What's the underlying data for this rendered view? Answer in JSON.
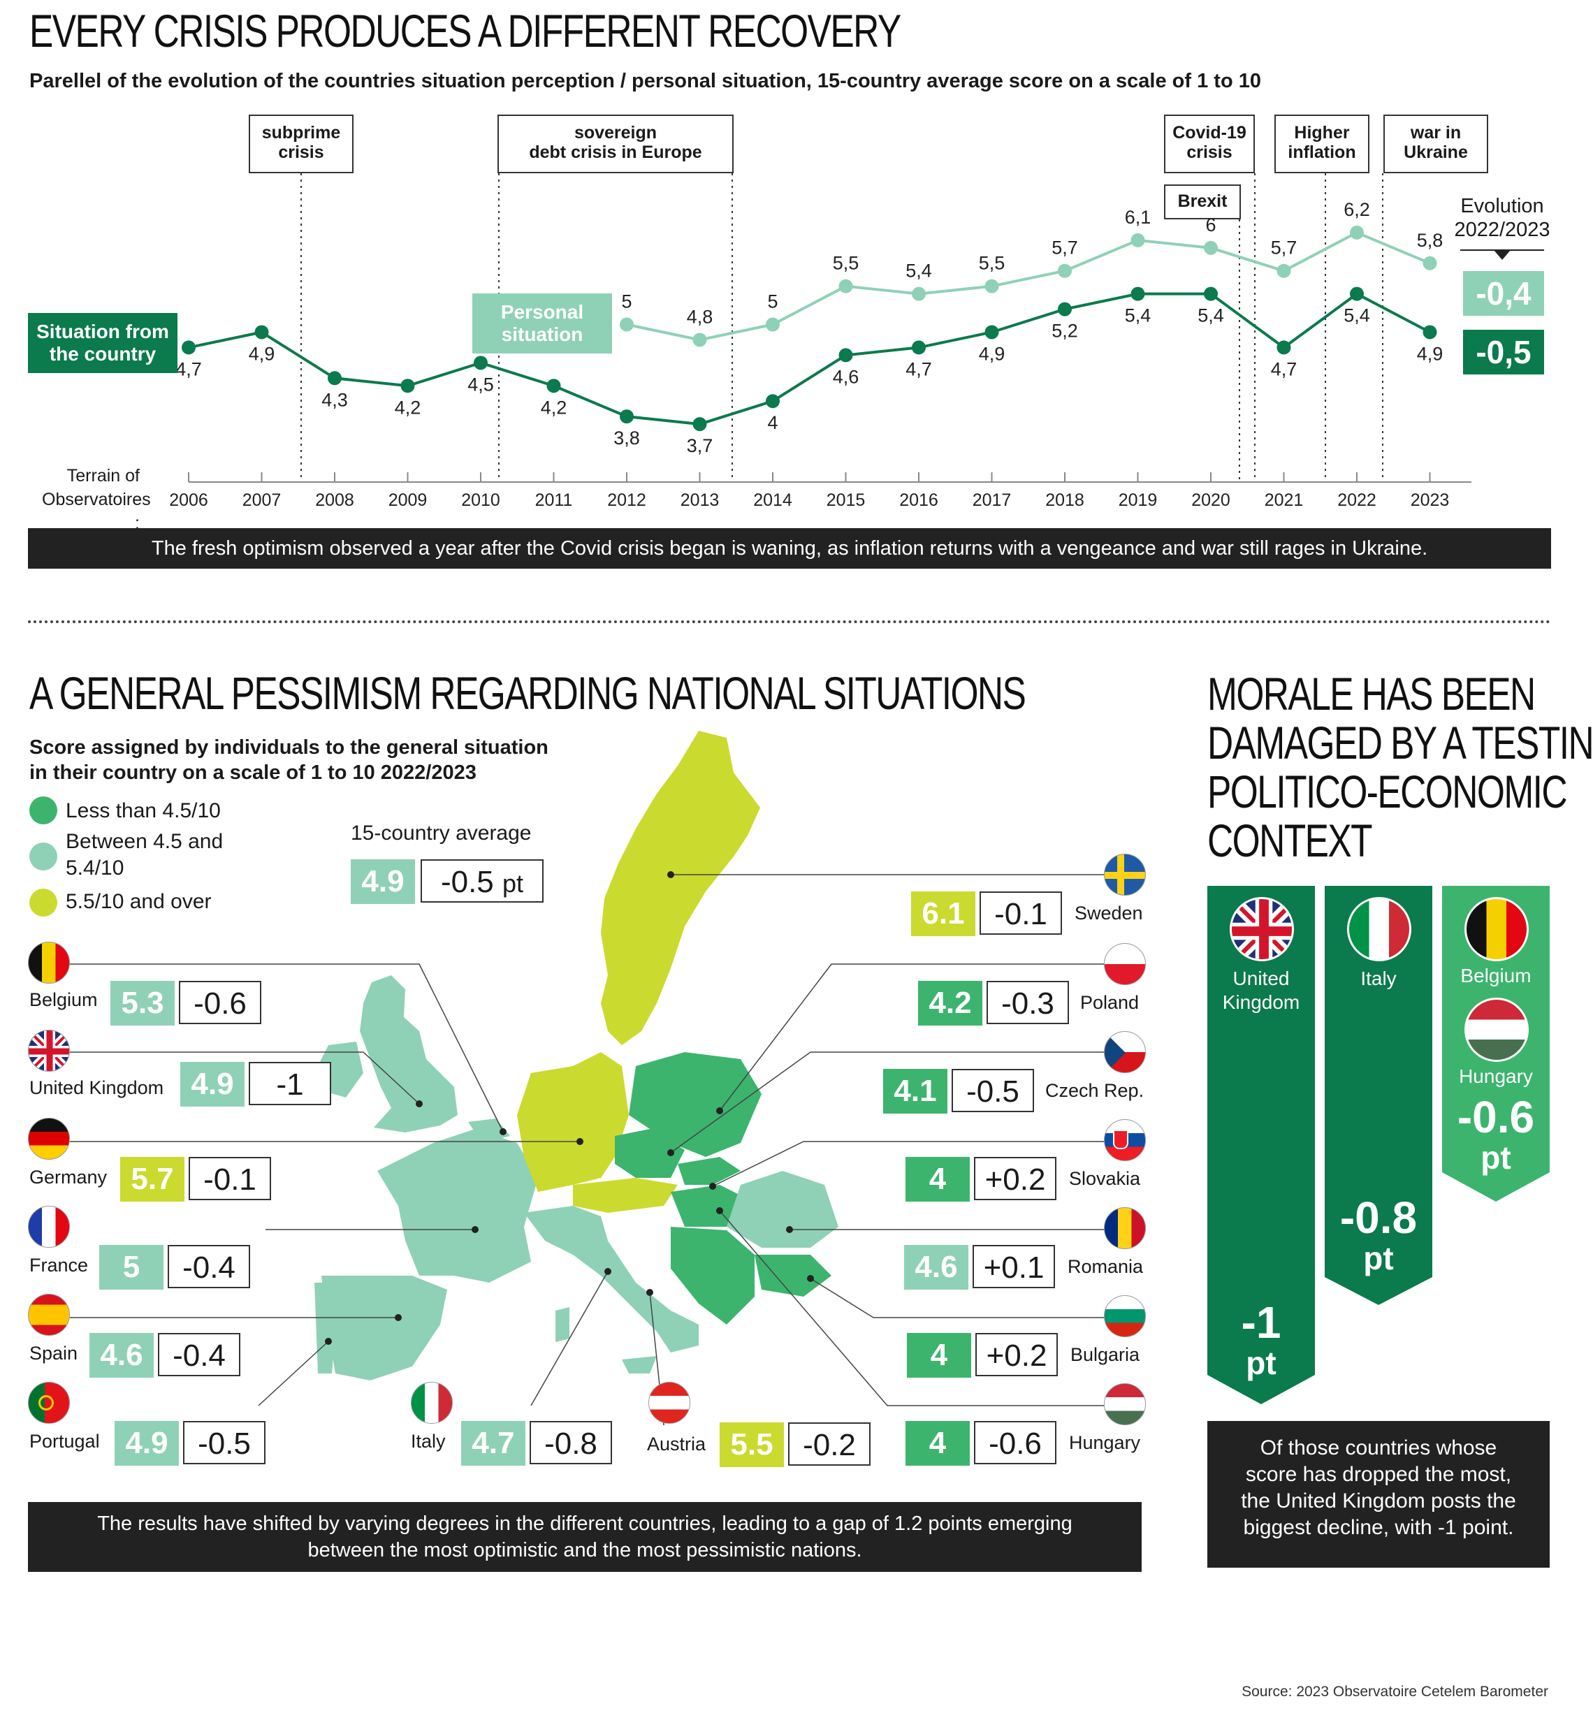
{
  "colors": {
    "dark_green": "#0b7a4c",
    "mid_green": "#3cb46e",
    "light_green": "#8fd1b6",
    "lime": "#cbda2e",
    "dark": "#222222"
  },
  "top": {
    "title": "EVERY CRISIS PRODUCES A DIFFERENT RECOVERY",
    "subtitle": "Parellel of the evolution of the countries situation perception / personal situation, 15-country average score on a scale of 1 to 10",
    "events": [
      {
        "label1": "subprime",
        "label2": "crisis"
      },
      {
        "label1": "sovereign",
        "label2": "debt crisis in Europe"
      },
      {
        "label1": "Covid-19",
        "label2": "crisis"
      },
      {
        "label1": "Brexit",
        "label2": ""
      },
      {
        "label1": "Higher",
        "label2": "inflation"
      },
      {
        "label1": "war in",
        "label2": "Ukraine"
      }
    ],
    "evolution_label1": "Evolution",
    "evolution_label2": "2022/2023",
    "evolution_personal": "-0,4",
    "evolution_country": "-0,5",
    "series_label_country1": "Situation from",
    "series_label_country2": "the country",
    "series_label_personal1": "Personal",
    "series_label_personal2": "situation",
    "axis_label1": "Terrain of",
    "axis_label2": "Observatoires :",
    "band": "The fresh optimism observed a year after the Covid crisis began is waning, as inflation returns with a vengeance and war still rages in Ukraine."
  },
  "chart_data": {
    "type": "line",
    "x": [
      "2006",
      "2007",
      "2008",
      "2009",
      "2010",
      "2011",
      "2012",
      "2013",
      "2014",
      "2015",
      "2016",
      "2017",
      "2018",
      "2019",
      "2020",
      "2021",
      "2022",
      "2023"
    ],
    "series": [
      {
        "name": "Situation from the country",
        "values": [
          4.7,
          4.9,
          4.3,
          4.2,
          4.5,
          4.2,
          3.8,
          3.7,
          4.0,
          4.6,
          4.7,
          4.9,
          5.2,
          5.4,
          5.4,
          4.7,
          5.4,
          4.9
        ],
        "labels": [
          "4,7",
          "4,9",
          "4,3",
          "4,2",
          "4,5",
          "4,2",
          "3,8",
          "3,7",
          "4",
          "4,6",
          "4,7",
          "4,9",
          "5,2",
          "5,4",
          "5,4",
          "4,7",
          "5,4",
          "4,9"
        ]
      },
      {
        "name": "Personal situation",
        "values": [
          null,
          null,
          null,
          null,
          null,
          null,
          5.0,
          4.8,
          5.0,
          5.5,
          5.4,
          5.5,
          5.7,
          6.1,
          6.0,
          5.7,
          6.2,
          5.8
        ],
        "labels": [
          "",
          "",
          "",
          "",
          "",
          "",
          "5",
          "4,8",
          "5",
          "5,5",
          "5,4",
          "5,5",
          "5,7",
          "6,1",
          "6",
          "5,7",
          "6,2",
          "5,8"
        ]
      }
    ],
    "ylim": [
      3.4,
      6.5
    ]
  },
  "map": {
    "title": "A GENERAL PESSIMISM REGARDING NATIONAL SITUATIONS",
    "subtitle1": "Score assigned by individuals to the general situation",
    "subtitle2": "in their country on a scale of 1 to 10 2022/2023",
    "legend": [
      {
        "label1": "Less than 4.5/10",
        "label2": ""
      },
      {
        "label1": "Between 4.5 and",
        "label2": "5.4/10"
      },
      {
        "label1": "5.5/10 and over",
        "label2": ""
      }
    ],
    "average_label": "15-country average",
    "average_score": "4.9",
    "average_delta": "-0.5",
    "average_unit": "pt",
    "countries": [
      {
        "name": "Belgium",
        "score": "5.3",
        "delta": "-0.6"
      },
      {
        "name": "United Kingdom",
        "score": "4.9",
        "delta": "-1"
      },
      {
        "name": "Germany",
        "score": "5.7",
        "delta": "-0.1"
      },
      {
        "name": "France",
        "score": "5",
        "delta": "-0.4"
      },
      {
        "name": "Spain",
        "score": "4.6",
        "delta": "-0.4"
      },
      {
        "name": "Portugal",
        "score": "4.9",
        "delta": "-0.5"
      },
      {
        "name": "Italy",
        "score": "4.7",
        "delta": "-0.8"
      },
      {
        "name": "Austria",
        "score": "5.5",
        "delta": "-0.2"
      },
      {
        "name": "Sweden",
        "score": "6.1",
        "delta": "-0.1"
      },
      {
        "name": "Poland",
        "score": "4.2",
        "delta": "-0.3"
      },
      {
        "name": "Czech Rep.",
        "score": "4.1",
        "delta": "-0.5"
      },
      {
        "name": "Slovakia",
        "score": "4",
        "delta": "+0.2"
      },
      {
        "name": "Romania",
        "score": "4.6",
        "delta": "+0.1"
      },
      {
        "name": "Bulgaria",
        "score": "4",
        "delta": "+0.2"
      },
      {
        "name": "Hungary",
        "score": "4",
        "delta": "-0.6"
      }
    ],
    "band1": "The results have shifted by varying degrees in the different countries, leading to a gap of 1.2 points emerging",
    "band2": "between the most optimistic and the most pessimistic nations."
  },
  "morale": {
    "title1": "MORALE HAS BEEN",
    "title2": "DAMAGED BY A TESTING",
    "title3": "POLITICO-ECONOMIC",
    "title4": "CONTEXT",
    "col1_country1": "United",
    "col1_country2": "Kingdom",
    "col1_value": "-1",
    "col1_unit": "pt",
    "col2_country": "Italy",
    "col2_value": "-0.8",
    "col2_unit": "pt",
    "col3_country1": "Belgium",
    "col3_country2": "Hungary",
    "col3_value": "-0.6",
    "col3_unit": "pt",
    "note1": "Of those countries whose",
    "note2": "score has dropped the most,",
    "note3": "the United Kingdom posts the",
    "note4": "biggest decline, with -1 point."
  },
  "source": "Source: 2023 Observatoire Cetelem Barometer"
}
